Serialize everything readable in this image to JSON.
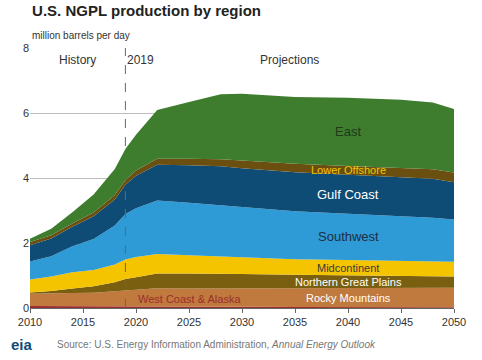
{
  "chart_data": {
    "type": "area",
    "stacked": true,
    "title": "U.S. NGPL production by region",
    "subtitle": "million barrels per day",
    "x": [
      2010,
      2012,
      2014,
      2016,
      2018,
      2019,
      2020,
      2022,
      2025,
      2028,
      2030,
      2035,
      2040,
      2045,
      2048,
      2050
    ],
    "series": [
      {
        "name": "West Coast & Alaska",
        "color": "#9b2d2d",
        "values": [
          0.06,
          0.06,
          0.06,
          0.05,
          0.05,
          0.05,
          0.05,
          0.05,
          0.04,
          0.04,
          0.04,
          0.03,
          0.03,
          0.02,
          0.02,
          0.02
        ]
      },
      {
        "name": "Rocky Mountains",
        "color": "#c07a3e",
        "values": [
          0.38,
          0.38,
          0.4,
          0.42,
          0.46,
          0.5,
          0.52,
          0.56,
          0.56,
          0.56,
          0.56,
          0.57,
          0.58,
          0.59,
          0.6,
          0.6
        ]
      },
      {
        "name": "Northern Great Plains",
        "color": "#7a5f10",
        "values": [
          0.04,
          0.08,
          0.14,
          0.2,
          0.28,
          0.34,
          0.38,
          0.45,
          0.46,
          0.46,
          0.45,
          0.42,
          0.4,
          0.38,
          0.36,
          0.35
        ]
      },
      {
        "name": "Midcontinent",
        "color": "#f5c400",
        "values": [
          0.4,
          0.45,
          0.5,
          0.5,
          0.55,
          0.6,
          0.62,
          0.6,
          0.56,
          0.52,
          0.5,
          0.48,
          0.47,
          0.46,
          0.45,
          0.45
        ]
      },
      {
        "name": "Southwest",
        "color": "#2e9ad6",
        "values": [
          0.55,
          0.62,
          0.8,
          0.95,
          1.2,
          1.4,
          1.5,
          1.65,
          1.62,
          1.58,
          1.55,
          1.48,
          1.42,
          1.38,
          1.35,
          1.3
        ]
      },
      {
        "name": "Gulf Coast",
        "color": "#0f4c75",
        "values": [
          0.5,
          0.55,
          0.6,
          0.7,
          0.8,
          0.9,
          1.0,
          1.1,
          1.15,
          1.2,
          1.2,
          1.2,
          1.2,
          1.2,
          1.2,
          1.15
        ]
      },
      {
        "name": "Lower Offshore",
        "color": "#6b4f10",
        "values": [
          0.1,
          0.1,
          0.1,
          0.12,
          0.14,
          0.15,
          0.16,
          0.18,
          0.2,
          0.22,
          0.24,
          0.26,
          0.27,
          0.28,
          0.29,
          0.3
        ]
      },
      {
        "name": "East",
        "color": "#3e7d2e",
        "values": [
          0.1,
          0.2,
          0.35,
          0.55,
          0.8,
          0.95,
          1.1,
          1.5,
          1.75,
          2.0,
          2.05,
          2.05,
          2.1,
          2.1,
          2.05,
          1.95
        ]
      }
    ],
    "xlim": [
      2010,
      2050
    ],
    "xticks": [
      2010,
      2015,
      2020,
      2025,
      2030,
      2035,
      2040,
      2045,
      2050
    ],
    "ylim": [
      0,
      8
    ],
    "yticks": [
      0,
      2,
      4,
      6,
      8
    ],
    "grid": true,
    "annotations": [
      {
        "text": "History"
      },
      {
        "text": "2019",
        "x": 2019
      },
      {
        "text": "Projections"
      }
    ],
    "source": {
      "text": "Source: U.S. Energy Information Administration,",
      "publication": "Annual Energy Outlook"
    },
    "logo": "eia"
  }
}
